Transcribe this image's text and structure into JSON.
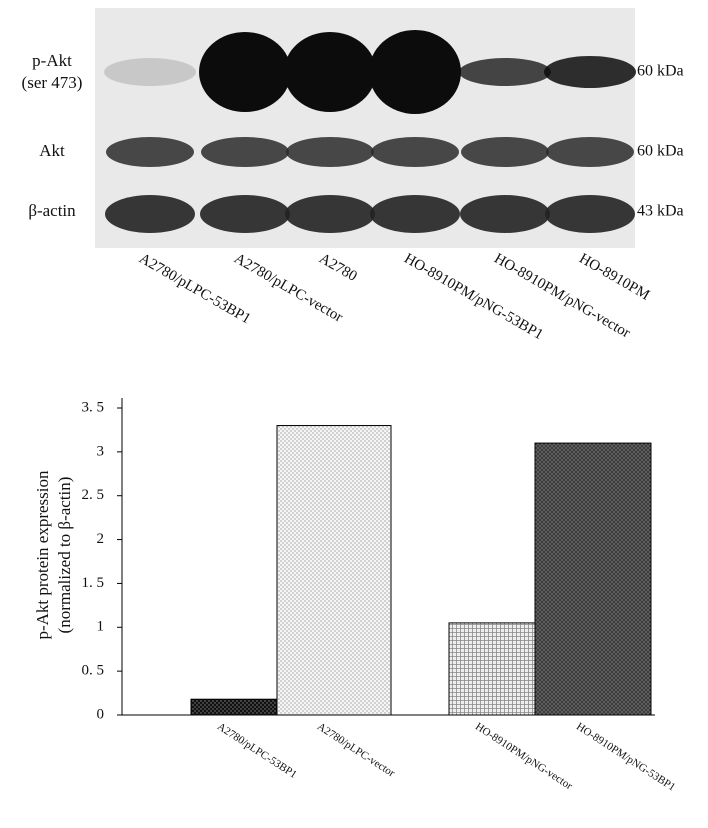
{
  "blot": {
    "rows": [
      {
        "label": "p-Akt",
        "sublabel": "(ser 473)",
        "size": "60 kDa"
      },
      {
        "label": "Akt",
        "size": "60 kDa"
      },
      {
        "label": "β-actin",
        "size": "43 kDa"
      }
    ],
    "lanes": [
      "A2780/pLPC-53BP1",
      "A2780/pLPC-vector",
      "A2780",
      "HO-8910PM/pNG-53BP1",
      "HO-8910PM/pNG-vector",
      "HO-8910PM"
    ]
  },
  "chart_data": {
    "type": "bar",
    "ylabel": [
      "p-Akt protein expression",
      "(normalized to β-actin)"
    ],
    "categories": [
      "A2780/pLPC-53BP1",
      "A2780/pLPC-vector",
      "HO-8910PM/pNG-vector",
      "HO-8910PM/pNG-53BP1"
    ],
    "values": [
      0.18,
      3.3,
      1.05,
      3.1
    ],
    "colors": [
      "#111111",
      "#f6f6f6",
      "#eeeeee",
      "#6a6a6a"
    ],
    "ylim": [
      0,
      3.5
    ],
    "yticks": [
      0,
      {
        "value": 0.5,
        "label": "0. 5"
      },
      1,
      {
        "value": 1.5,
        "label": "1. 5"
      },
      2,
      {
        "value": 2.5,
        "label": "2. 5"
      },
      3,
      {
        "value": 3.5,
        "label": "3. 5"
      }
    ]
  }
}
